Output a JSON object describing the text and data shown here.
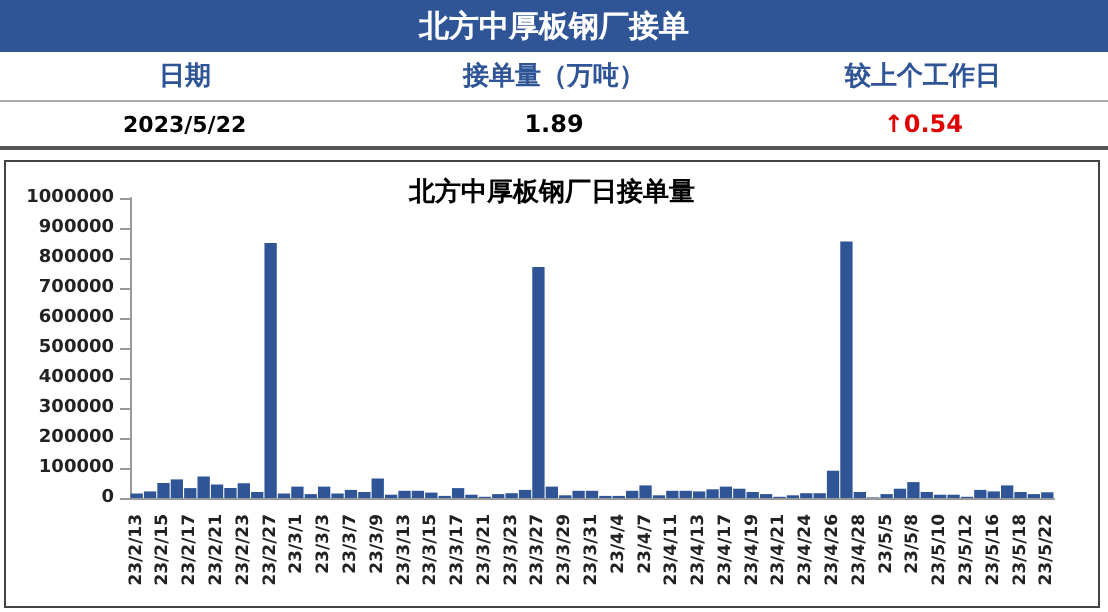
{
  "chart_data": {
    "type": "bar",
    "title": "北方中厚板钢厂日接单量",
    "annotations": [
      "北方中厚板钢厂接单",
      "日期",
      "接单量（万吨）",
      "较上个工作日",
      "2023/5/22",
      "1.89",
      "↑0.54"
    ],
    "categories": [
      "23/2/13",
      null,
      "23/2/15",
      null,
      "23/2/17",
      null,
      "23/2/21",
      null,
      "23/2/23",
      null,
      "23/2/27",
      null,
      "23/3/1",
      null,
      "23/3/3",
      null,
      "23/3/7",
      null,
      "23/3/9",
      null,
      "23/3/13",
      null,
      "23/3/15",
      null,
      "23/3/17",
      null,
      "23/3/21",
      null,
      "23/3/23",
      null,
      "23/3/27",
      null,
      "23/3/29",
      null,
      "23/3/31",
      null,
      "23/4/4",
      null,
      "23/4/7",
      null,
      "23/4/11",
      null,
      "23/4/13",
      null,
      "23/4/17",
      null,
      "23/4/19",
      null,
      "23/4/21",
      null,
      "23/4/24",
      null,
      "23/4/26",
      null,
      "23/4/28",
      null,
      "23/5/5",
      null,
      "23/5/8",
      null,
      "23/5/10",
      null,
      "23/5/12",
      null,
      "23/5/16",
      null,
      "23/5/18",
      null,
      "23/5/22"
    ],
    "values": [
      15000,
      22000,
      50000,
      62000,
      33000,
      72000,
      45000,
      33000,
      49000,
      20000,
      850000,
      15000,
      38000,
      13000,
      38000,
      15000,
      27000,
      20000,
      65000,
      11000,
      24000,
      24000,
      18000,
      7000,
      33000,
      11000,
      4000,
      13000,
      16000,
      27000,
      770000,
      38000,
      9000,
      24000,
      24000,
      7000,
      7000,
      24000,
      42000,
      9000,
      24000,
      24000,
      22000,
      29000,
      38000,
      31000,
      20000,
      13000,
      4000,
      9000,
      16000,
      16000,
      91000,
      855000,
      20000,
      2000,
      13000,
      31000,
      53000,
      20000,
      11000,
      11000,
      4000,
      27000,
      22000,
      42000,
      20000,
      13000,
      19000
    ],
    "color": "#2f5597",
    "ylim": [
      0,
      1000000
    ],
    "yticks": [
      0,
      100000,
      200000,
      300000,
      400000,
      500000,
      600000,
      700000,
      800000,
      900000,
      1000000
    ],
    "grid": false
  }
}
